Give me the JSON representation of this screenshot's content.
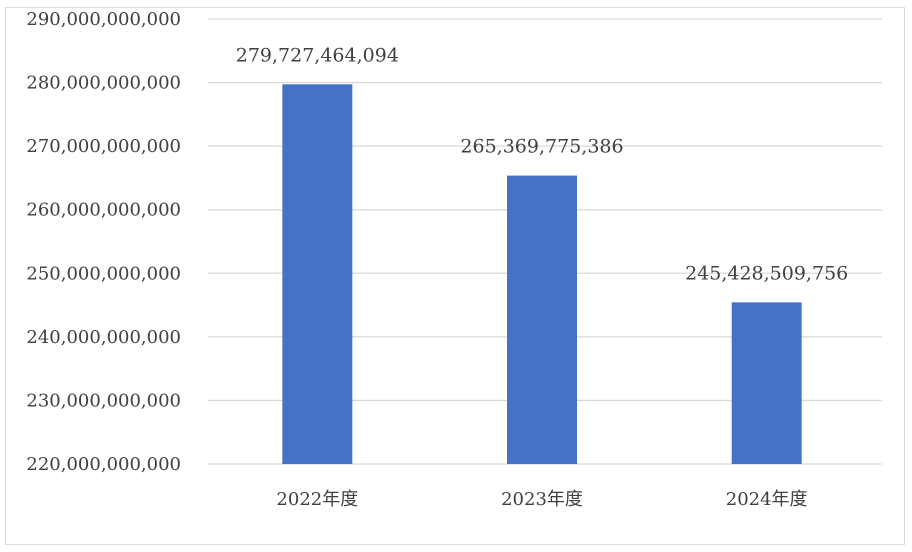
{
  "chart_data": {
    "type": "bar",
    "title": "",
    "xlabel": "",
    "ylabel": "",
    "categories": [
      "2022年度",
      "2023年度",
      "2024年度"
    ],
    "values": [
      279727464094,
      265369775386,
      245428509756
    ],
    "data_labels": [
      "279,727,464,094",
      "265,369,775,386",
      "245,428,509,756"
    ],
    "ylim": [
      220000000000,
      290000000000
    ],
    "ytick_values": [
      220000000000,
      230000000000,
      240000000000,
      250000000000,
      260000000000,
      270000000000,
      280000000000,
      290000000000
    ],
    "ytick_labels": [
      "220,000,000,000",
      "230,000,000,000",
      "240,000,000,000",
      "250,000,000,000",
      "260,000,000,000",
      "270,000,000,000",
      "280,000,000,000",
      "290,000,000,000"
    ],
    "grid": true,
    "legend": "none",
    "bar_color": "#4472c4",
    "grid_color": "#d9d9d9"
  }
}
